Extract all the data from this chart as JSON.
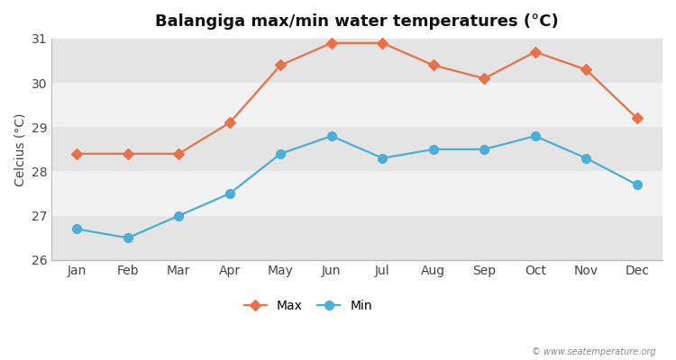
{
  "title": "Balangiga max/min water temperatures (°C)",
  "ylabel": "Celcius (°C)",
  "months": [
    "Jan",
    "Feb",
    "Mar",
    "Apr",
    "May",
    "Jun",
    "Jul",
    "Aug",
    "Sep",
    "Oct",
    "Nov",
    "Dec"
  ],
  "max_values": [
    28.4,
    28.4,
    28.4,
    29.1,
    30.4,
    30.9,
    30.9,
    30.4,
    30.1,
    30.7,
    30.3,
    29.2
  ],
  "min_values": [
    26.7,
    26.5,
    27.0,
    27.5,
    28.4,
    28.8,
    28.3,
    28.5,
    28.5,
    28.8,
    28.3,
    27.7
  ],
  "max_color": "#e8714a",
  "min_color": "#4aaed8",
  "fig_bg_color": "#ffffff",
  "band_light": "#f2f2f2",
  "band_dark": "#e4e4e4",
  "ylim": [
    26.0,
    31.0
  ],
  "yticks": [
    26,
    27,
    28,
    29,
    30,
    31
  ],
  "watermark": "© www.seatemperature.org",
  "legend_labels": [
    "Max",
    "Min"
  ],
  "max_marker": "D",
  "min_marker": "o",
  "max_marker_size": 6,
  "min_marker_size": 7,
  "line_width": 1.6,
  "title_fontsize": 13,
  "axis_fontsize": 10,
  "watermark_fontsize": 7
}
